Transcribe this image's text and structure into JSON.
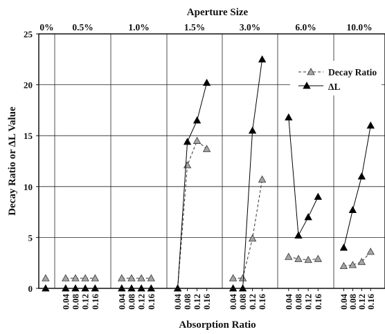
{
  "chart_data": {
    "type": "line",
    "top_title": "Aperture Size",
    "xlabel": "Absorption Ratio",
    "ylabel": "Decay Ratio or ΔL Value",
    "ylim": [
      0,
      25
    ],
    "y_ticks": [
      0,
      5,
      10,
      15,
      20,
      25
    ],
    "grid": true,
    "legend_position": "top-right",
    "panels": [
      {
        "label": "0%",
        "x_ticks": [],
        "decay_ratio": [
          1.0
        ],
        "delta_l": [
          0
        ]
      },
      {
        "label": "0.5%",
        "x_ticks": [
          "0.04",
          "0.08",
          "0.12",
          "0.16"
        ],
        "decay_ratio": [
          1.0,
          1.0,
          1.0,
          1.0
        ],
        "delta_l": [
          0,
          0,
          0,
          0
        ]
      },
      {
        "label": "1.0%",
        "x_ticks": [
          "0.04",
          "0.08",
          "0.12",
          "0.16"
        ],
        "decay_ratio": [
          1.0,
          1.0,
          1.0,
          1.0
        ],
        "delta_l": [
          0,
          0,
          0,
          0
        ]
      },
      {
        "label": "1.5%",
        "x_ticks": [
          "0.04",
          "0.08",
          "0.12",
          "0.16"
        ],
        "decay_ratio": [
          0,
          12.1,
          14.5,
          13.7
        ],
        "delta_l": [
          0,
          14.4,
          16.5,
          20.2
        ]
      },
      {
        "label": "3.0%",
        "x_ticks": [
          "0.04",
          "0.08",
          "0.12",
          "0.16"
        ],
        "decay_ratio": [
          1.0,
          1.0,
          4.9,
          10.7
        ],
        "delta_l": [
          0,
          0,
          15.5,
          22.5
        ]
      },
      {
        "label": "6.0%",
        "x_ticks": [
          "0.04",
          "0.08",
          "0.12",
          "0.16"
        ],
        "decay_ratio": [
          3.1,
          2.9,
          2.8,
          2.9
        ],
        "delta_l": [
          16.8,
          5.2,
          7.0,
          9.0
        ]
      },
      {
        "label": "10.0%",
        "x_ticks": [
          "0.04",
          "0.08",
          "0.12",
          "0.16"
        ],
        "decay_ratio": [
          2.2,
          2.3,
          2.6,
          3.6
        ],
        "delta_l": [
          4.0,
          7.7,
          11.0,
          16.0
        ]
      }
    ],
    "series": [
      {
        "name": "Decay Ratio",
        "key": "decay_ratio",
        "marker": "triangle-open-grey",
        "line": "dashed",
        "color": "#9e9e9e"
      },
      {
        "name": "ΔL",
        "key": "delta_l",
        "marker": "triangle-filled-black",
        "line": "solid",
        "color": "#000000"
      }
    ]
  }
}
